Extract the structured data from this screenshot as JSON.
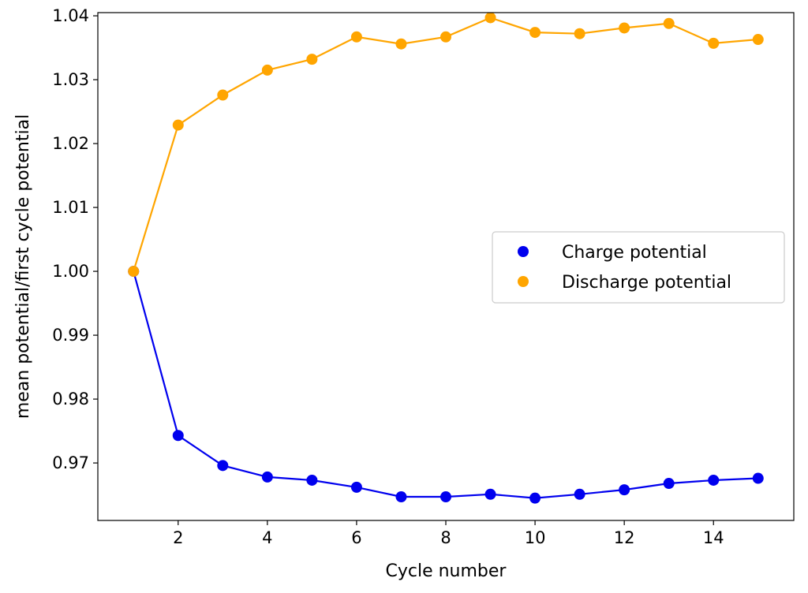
{
  "chart_data": {
    "type": "line",
    "xlabel": "Cycle number",
    "ylabel": "mean potential/first cycle potential",
    "xlim": [
      0.2,
      15.8
    ],
    "ylim": [
      0.961,
      1.0405
    ],
    "x_ticks": [
      2,
      4,
      6,
      8,
      10,
      12,
      14
    ],
    "x_tick_labels": [
      "2",
      "4",
      "6",
      "8",
      "10",
      "12",
      "14"
    ],
    "y_ticks": [
      0.97,
      0.98,
      0.99,
      1.0,
      1.01,
      1.02,
      1.03,
      1.04
    ],
    "y_tick_labels": [
      "0.97",
      "0.98",
      "0.99",
      "1.00",
      "1.01",
      "1.02",
      "1.03",
      "1.04"
    ],
    "grid": false,
    "legend_position": "right",
    "x": [
      1,
      2,
      3,
      4,
      5,
      6,
      7,
      8,
      9,
      10,
      11,
      12,
      13,
      14,
      15
    ],
    "series": [
      {
        "name": "Charge potential",
        "color": "#0000ee",
        "values": [
          1.0,
          0.9743,
          0.9696,
          0.9678,
          0.9673,
          0.9662,
          0.9647,
          0.9647,
          0.9651,
          0.9645,
          0.9651,
          0.9658,
          0.9668,
          0.9673,
          0.9676
        ]
      },
      {
        "name": "Discharge potential",
        "color": "#ffa500",
        "values": [
          1.0,
          1.0229,
          1.0276,
          1.0315,
          1.0332,
          1.0367,
          1.0356,
          1.0367,
          1.0397,
          1.0374,
          1.0372,
          1.0381,
          1.0388,
          1.0357,
          1.0363
        ]
      }
    ]
  }
}
